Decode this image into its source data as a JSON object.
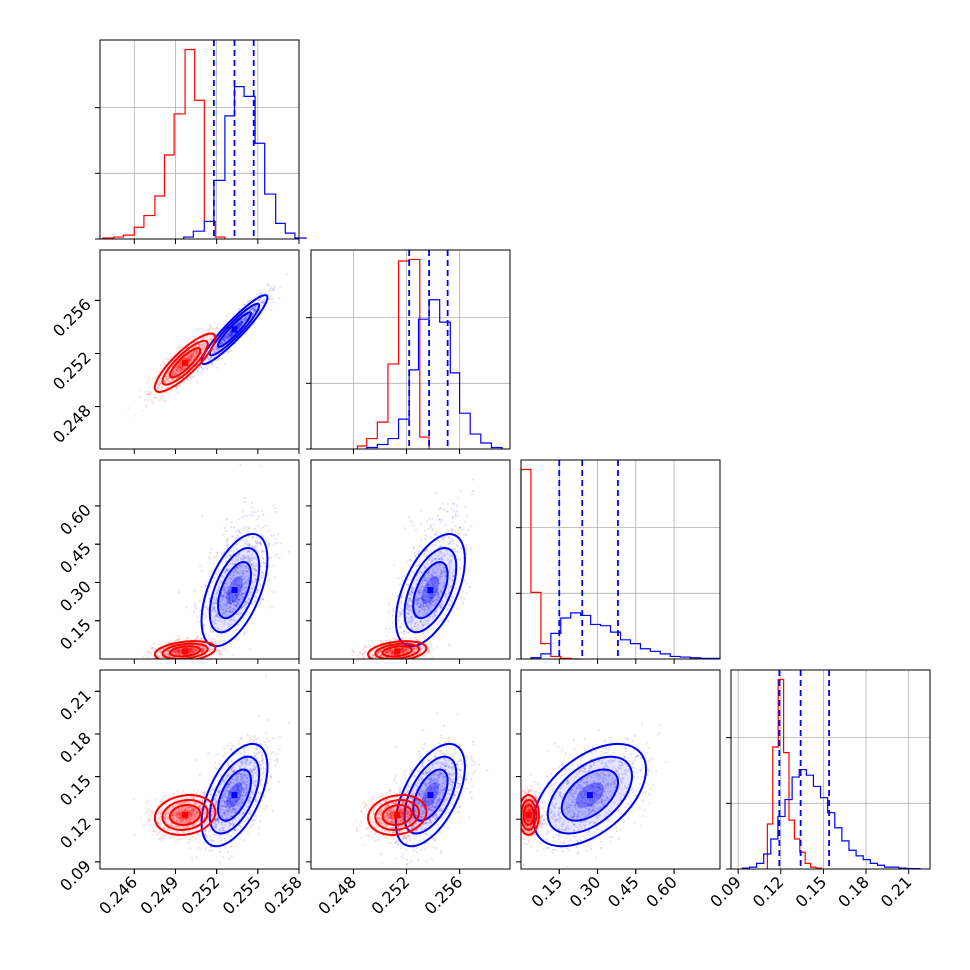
{
  "chart_data": {
    "type": "corner",
    "colors": {
      "red": "#ff0000",
      "blue": "#0000ff"
    },
    "grid": true,
    "params": [
      {
        "id": "p1",
        "range": [
          0.2435,
          0.258
        ],
        "ticks": [
          0.246,
          0.249,
          0.252,
          0.255,
          0.258
        ],
        "tick_labels": [
          "0.246",
          "0.249",
          "0.252",
          "0.255",
          "0.258"
        ]
      },
      {
        "id": "p2",
        "range": [
          0.2448,
          0.2598
        ],
        "ticks": [
          0.248,
          0.252,
          0.256
        ],
        "tick_labels": [
          "0.248",
          "0.252",
          "0.256"
        ]
      },
      {
        "id": "p3",
        "range": [
          0.0,
          0.78
        ],
        "ticks": [
          0.15,
          0.3,
          0.45,
          0.6
        ],
        "tick_labels": [
          "0.15",
          "0.30",
          "0.45",
          "0.60"
        ]
      },
      {
        "id": "p4",
        "range": [
          0.085,
          0.225
        ],
        "ticks": [
          0.09,
          0.12,
          0.15,
          0.18,
          0.21
        ],
        "tick_labels": [
          "0.09",
          "0.12",
          "0.15",
          "0.18",
          "0.21"
        ]
      }
    ],
    "histograms": [
      {
        "param": 0,
        "quantiles_blue": [
          0.2518,
          0.2533,
          0.2547
        ],
        "series": [
          {
            "name": "red",
            "edges": [
              0.2437,
              0.2445,
              0.2452,
              0.246,
              0.2467,
              0.2475,
              0.2482,
              0.2489,
              0.2497,
              0.2504,
              0.2511,
              0.2519,
              0.2526
            ],
            "counts": [
              0.5,
              1,
              2,
              6,
              12,
              22,
              43,
              64,
              97,
              71,
              9,
              1
            ]
          },
          {
            "name": "blue",
            "edges": [
              0.2496,
              0.2503,
              0.2511,
              0.2518,
              0.2526,
              0.2533,
              0.254,
              0.2548,
              0.2555,
              0.2563,
              0.257,
              0.2577,
              0.2585
            ],
            "counts": [
              1,
              4,
              9,
              30,
              63,
              78,
              73,
              49,
              23,
              8,
              3,
              0.5
            ]
          }
        ]
      },
      {
        "param": 1,
        "quantiles_blue": [
          0.2522,
          0.2537,
          0.2551
        ],
        "series": [
          {
            "name": "red",
            "edges": [
              0.2483,
              0.249,
              0.2498,
              0.2506,
              0.2514,
              0.2522,
              0.253,
              0.2537
            ],
            "counts": [
              2,
              7,
              18,
              57,
              126,
              127,
              8
            ]
          },
          {
            "name": "blue",
            "edges": [
              0.249,
              0.2498,
              0.2506,
              0.2514,
              0.2522,
              0.2529,
              0.2537,
              0.2545,
              0.2553,
              0.256,
              0.2568,
              0.2576,
              0.2584,
              0.2592
            ],
            "counts": [
              1,
              3,
              7,
              20,
              53,
              87,
              100,
              85,
              51,
              24,
              10,
              4,
              1
            ]
          }
        ]
      },
      {
        "param": 2,
        "quantiles_blue": [
          0.15,
          0.24,
          0.38
        ],
        "series": [
          {
            "name": "red",
            "edges": [
              0.0,
              0.039,
              0.078,
              0.117,
              0.156,
              0.195,
              0.234
            ],
            "counts": [
              148,
              52,
              12,
              2,
              0.5,
              0
            ]
          },
          {
            "name": "blue",
            "edges": [
              0.039,
              0.078,
              0.117,
              0.156,
              0.195,
              0.234,
              0.273,
              0.312,
              0.351,
              0.39,
              0.429,
              0.468,
              0.507,
              0.546,
              0.585,
              0.624,
              0.663,
              0.702,
              0.741,
              0.78
            ],
            "counts": [
              1,
              4,
              20,
              32,
              36,
              34,
              27,
              26,
              21,
              15,
              12,
              8,
              6,
              4,
              2,
              1.5,
              1,
              0.5,
              0.5
            ]
          }
        ]
      },
      {
        "param": 3,
        "quantiles_blue": [
          0.119,
          0.134,
          0.154
        ],
        "series": [
          {
            "name": "red",
            "edges": [
              0.1106,
              0.1144,
              0.1182,
              0.122,
              0.1258,
              0.1296,
              0.1334,
              0.1372,
              0.141,
              0.1448,
              0.1486
            ],
            "counts": [
              24,
              65,
              101,
              62,
              26,
              16,
              9,
              3,
              1,
              0.5
            ]
          },
          {
            "name": "blue",
            "edges": [
              0.093,
              0.098,
              0.103,
              0.108,
              0.113,
              0.118,
              0.123,
              0.128,
              0.133,
              0.138,
              0.143,
              0.148,
              0.153,
              0.158,
              0.163,
              0.168,
              0.173,
              0.178,
              0.183,
              0.188,
              0.193,
              0.198,
              0.203,
              0.208,
              0.213,
              0.218
            ],
            "counts": [
              0.5,
              1,
              3,
              8,
              16,
              28,
              37,
              49,
              53,
              50,
              44,
              38,
              30,
              22,
              15,
              10,
              7,
              5,
              3,
              2,
              1,
              1,
              0.5,
              0.3,
              0.2
            ]
          }
        ]
      }
    ],
    "scatter_panels": [
      {
        "row": 1,
        "col": 0,
        "blue": {
          "mean": [
            0.2533,
            0.2538
          ],
          "sd": [
            0.0012,
            0.0013
          ],
          "rho": 0.93,
          "n": 900
        },
        "red": {
          "mean": [
            0.2497,
            0.2513
          ],
          "sd": [
            0.0011,
            0.0011
          ],
          "rho": 0.85,
          "n": 900
        }
      },
      {
        "row": 2,
        "col": 0,
        "blue": {
          "mean": [
            0.2533,
            0.27
          ],
          "sd": [
            0.0012,
            0.11
          ],
          "rho": 0.55,
          "n": 900
        },
        "red": {
          "mean": [
            0.2497,
            0.03
          ],
          "sd": [
            0.0011,
            0.02
          ],
          "rho": 0.3,
          "n": 900
        }
      },
      {
        "row": 2,
        "col": 1,
        "blue": {
          "mean": [
            0.2538,
            0.27
          ],
          "sd": [
            0.0013,
            0.11
          ],
          "rho": 0.55,
          "n": 900
        },
        "red": {
          "mean": [
            0.2513,
            0.03
          ],
          "sd": [
            0.0011,
            0.02
          ],
          "rho": 0.3,
          "n": 900
        }
      },
      {
        "row": 3,
        "col": 0,
        "blue": {
          "mean": [
            0.2533,
            0.137
          ],
          "sd": [
            0.0012,
            0.018
          ],
          "rho": 0.55,
          "n": 900
        },
        "red": {
          "mean": [
            0.2497,
            0.123
          ],
          "sd": [
            0.0011,
            0.007
          ],
          "rho": 0.15,
          "n": 900
        }
      },
      {
        "row": 3,
        "col": 1,
        "blue": {
          "mean": [
            0.2538,
            0.137
          ],
          "sd": [
            0.0013,
            0.018
          ],
          "rho": 0.55,
          "n": 900
        },
        "red": {
          "mean": [
            0.2513,
            0.123
          ],
          "sd": [
            0.0011,
            0.007
          ],
          "rho": 0.15,
          "n": 900
        }
      },
      {
        "row": 3,
        "col": 2,
        "blue": {
          "mean": [
            0.27,
            0.137
          ],
          "sd": [
            0.11,
            0.018
          ],
          "rho": 0.5,
          "n": 900
        },
        "red": {
          "mean": [
            0.03,
            0.123
          ],
          "sd": [
            0.02,
            0.007
          ],
          "rho": 0.0,
          "n": 900
        }
      }
    ]
  }
}
